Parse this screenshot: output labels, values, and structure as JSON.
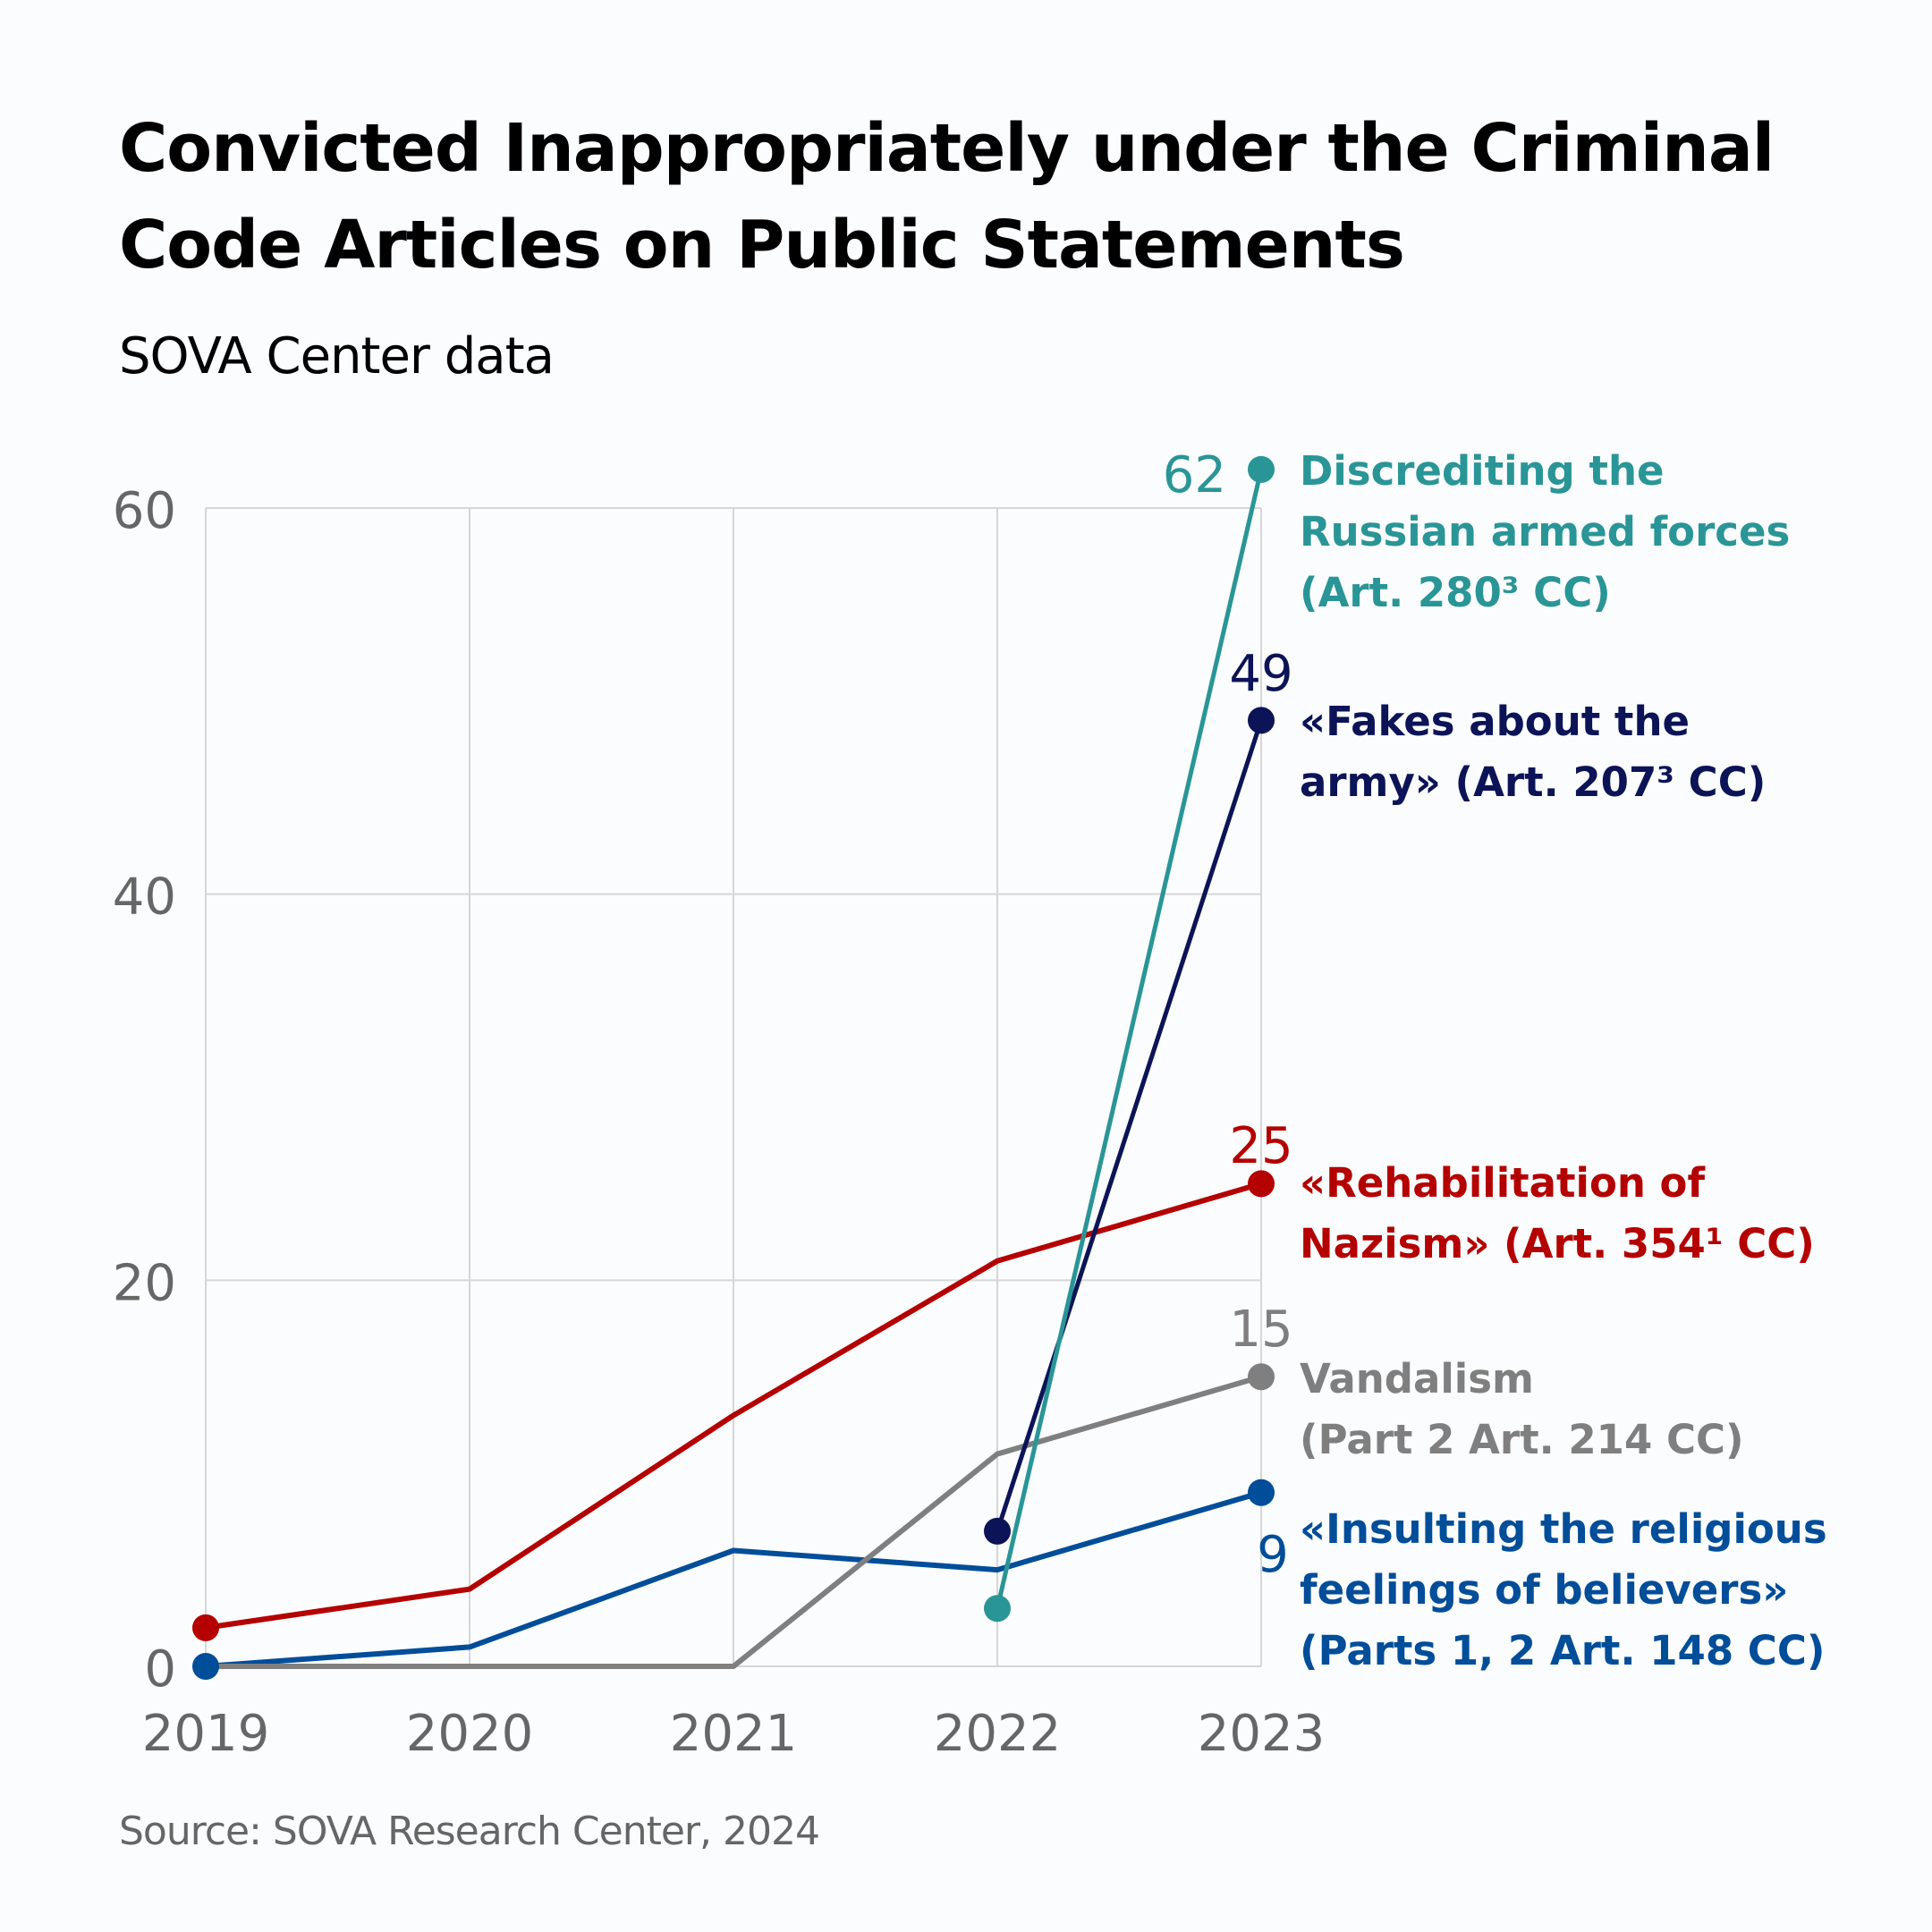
{
  "header": {
    "title_lines": [
      "Convicted Inappropriately under the Criminal",
      "Code Articles on Public Statements"
    ],
    "subtitle": "SOVA Center data"
  },
  "footer": {
    "source": "Source: SOVA Research Center, 2024"
  },
  "chart_data": {
    "type": "line",
    "title": "Convicted Inappropriately under the Criminal Code Articles on Public Statements",
    "subtitle": "SOVA Center data",
    "xlabel": "",
    "ylabel": "",
    "x": [
      "2019",
      "2020",
      "2021",
      "2022",
      "2023"
    ],
    "ylim": [
      0,
      60
    ],
    "yticks": [
      0,
      20,
      40,
      60
    ],
    "grid": true,
    "legend": "direct labels at right of line ends",
    "series": [
      {
        "key": "rehab",
        "name": "«Rehabilitation of Nazism» (Art. 354¹ CC)",
        "label_lines": [
          "«Rehabilitation of",
          "Nazism» (Art. 354¹ CC)"
        ],
        "color": "#b40000",
        "values": [
          2,
          4,
          13,
          21,
          25
        ],
        "end_label": "25",
        "markers": [
          0,
          4
        ]
      },
      {
        "key": "insult",
        "name": "«Insulting the religious feelings of believers» (Parts 1, 2 Art. 148 CC)",
        "label_lines": [
          "«Insulting the religious",
          "feelings of believers»",
          "(Parts 1, 2 Art. 148 CC)"
        ],
        "color": "#004d99",
        "values": [
          0,
          1,
          6,
          5,
          9
        ],
        "end_label": "9",
        "markers": [
          0,
          4
        ]
      },
      {
        "key": "vandal",
        "name": "Vandalism (Part 2 Art. 214 CC)",
        "label_lines": [
          "Vandalism",
          "(Part 2 Art. 214 CC)"
        ],
        "color": "#7f7f7f",
        "values": [
          0,
          0,
          0,
          11,
          15
        ],
        "end_label": "15",
        "markers": [
          4
        ]
      },
      {
        "key": "fakes",
        "name": "«Fakes about the army» (Art. 207³ CC)",
        "label_lines": [
          "«Fakes about the",
          "army» (Art. 207³ CC)"
        ],
        "color": "#0c1457",
        "values": [
          null,
          null,
          null,
          7,
          49
        ],
        "end_label": "49",
        "markers": [
          3,
          4
        ]
      },
      {
        "key": "discredit",
        "name": "Discrediting the Russian armed forces (Art. 280³ CC)",
        "label_lines": [
          "Discrediting the",
          "Russian armed forces",
          "(Art. 280³ CC)"
        ],
        "color": "#2a9596",
        "values": [
          null,
          null,
          null,
          3,
          62
        ],
        "end_label": "62",
        "markers": [
          3,
          4
        ]
      }
    ]
  }
}
